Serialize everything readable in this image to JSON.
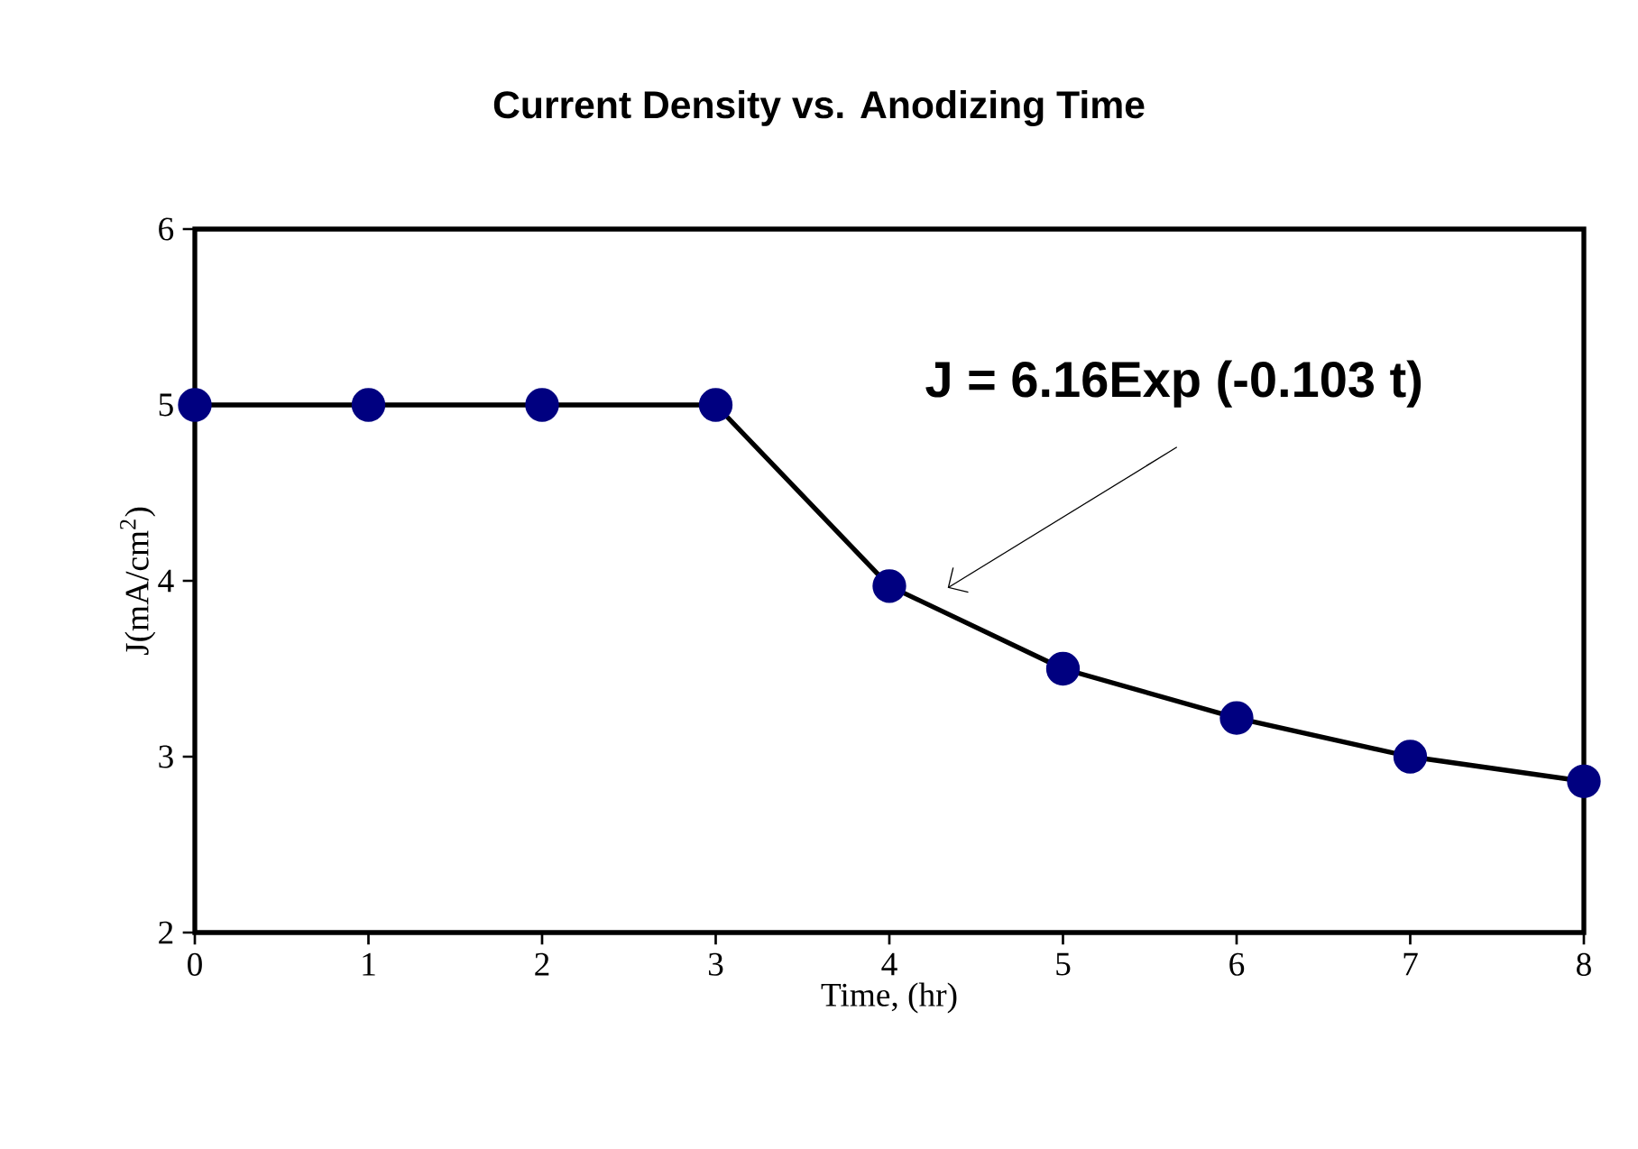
{
  "chart_data": {
    "type": "line",
    "title": "Current Density vs. Anodizing Time",
    "xlabel": "Time,  (hr)",
    "ylabel": "J(mA/cm$^{2}$)",
    "x": [
      0,
      1,
      2,
      3,
      4,
      5,
      6,
      7,
      8
    ],
    "series": [
      {
        "color": "#000080",
        "values": [
          5,
          5,
          5,
          5,
          3.97,
          3.5,
          3.22,
          3.0,
          2.86
        ]
      }
    ],
    "xlim": [
      0,
      8
    ],
    "xticks": [
      0,
      1,
      2,
      3,
      4,
      5,
      6,
      7,
      8
    ],
    "ylim": [
      2,
      6
    ],
    "yticks": [
      2,
      3,
      4,
      5,
      6
    ],
    "marker": "circle",
    "line_style": "solid",
    "grid": false,
    "annotations": [
      "J = 6.16Exp (-0.103 t)"
    ]
  }
}
